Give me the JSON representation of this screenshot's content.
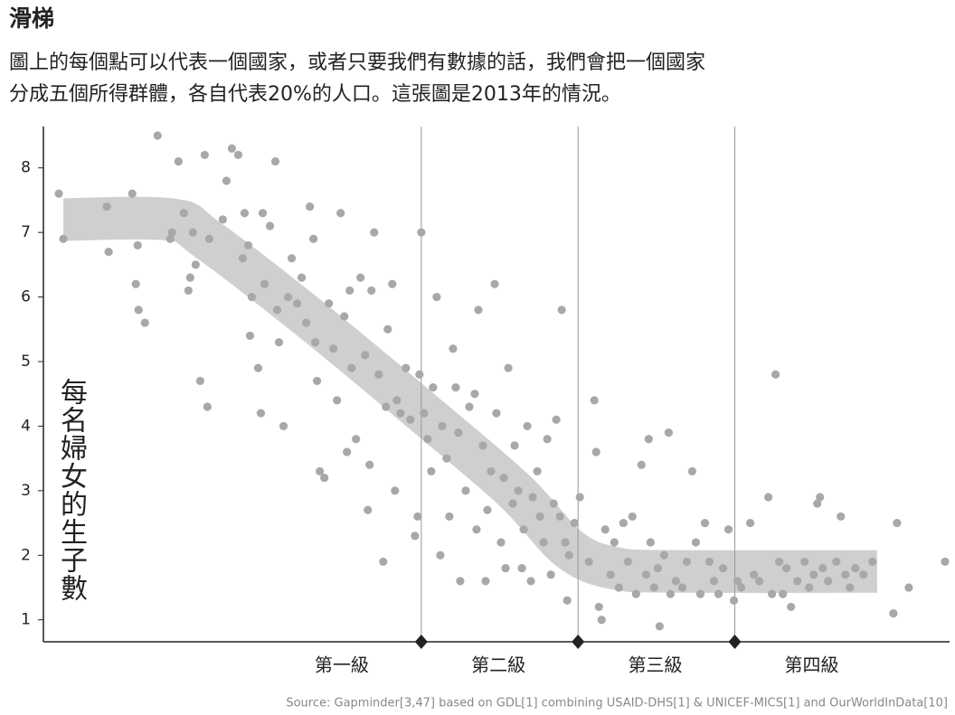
{
  "chart_data": {
    "type": "scatter",
    "title": "滑梯",
    "subtitle": [
      "圖上的每個點可以代表一個國家，或者只要我們有數據的話，我們會把一個國家",
      "分成五個所得群體，各自代表20%的人口。這張圖是2013年的情況。"
    ],
    "ylabel": "每名婦女的生子數",
    "source": "Source: Gapminder[3,47] based on GDL[1] combining USAID-DHS[1] & UNICEF-MICS[1] and OurWorldInData[10]",
    "xlim": [
      0,
      100
    ],
    "ylim": [
      0.66,
      8.64
    ],
    "yticks": [
      1,
      2,
      3,
      4,
      5,
      6,
      7,
      8
    ],
    "color": "#a8a8a8",
    "band_color": "#cfcfcf",
    "band_width": 0.66,
    "band": {
      "x": [
        2.2,
        14,
        18,
        30,
        42,
        52,
        58,
        63,
        70,
        92
      ],
      "y": [
        7.2,
        7.2,
        6.9,
        5.6,
        4.2,
        3.0,
        2.1,
        1.8,
        1.75,
        1.75
      ]
    },
    "levels": [
      "第一級",
      "第二級",
      "第三級",
      "第四級"
    ],
    "level_boundaries": [
      41.7,
      59.0,
      76.3
    ],
    "x": [
      1.7,
      2.2,
      7,
      7.2,
      9.8,
      10.2,
      10.4,
      10.5,
      11.2,
      12.6,
      14,
      14.2,
      14.9,
      15.5,
      16,
      16.2,
      16.5,
      16.8,
      17.3,
      17.8,
      18.1,
      18.3,
      19.8,
      20.2,
      20.8,
      21.5,
      22,
      22.2,
      22.6,
      22.8,
      23,
      23.7,
      24,
      24.2,
      24.4,
      25,
      25.6,
      25.8,
      26,
      26.5,
      27,
      27.4,
      28,
      28.5,
      29,
      29.4,
      29.8,
      30,
      30.2,
      30.5,
      31,
      31.5,
      32,
      32.4,
      32.8,
      33.2,
      33.5,
      33.8,
      34,
      34.5,
      35,
      35.5,
      35.8,
      36,
      36.2,
      36.5,
      37,
      37.5,
      37.8,
      38,
      38.5,
      38.8,
      39,
      39.4,
      40,
      40.5,
      41,
      41.3,
      41.5,
      41.7,
      42,
      42.4,
      42.8,
      43,
      43.4,
      43.8,
      44,
      44.5,
      44.8,
      45.2,
      45.5,
      45.8,
      46,
      46.6,
      47,
      47.6,
      47.8,
      48,
      48.5,
      48.8,
      49,
      49.4,
      49.8,
      50,
      50.5,
      50.8,
      51,
      51.3,
      51.8,
      52,
      52.4,
      52.8,
      53,
      53.4,
      53.8,
      54,
      54.5,
      54.8,
      55.2,
      55.6,
      56,
      56.3,
      56.6,
      57,
      57.2,
      57.6,
      57.8,
      58,
      58.6,
      59.2,
      60.2,
      60.8,
      61,
      61.3,
      61.6,
      62,
      62.6,
      63,
      63.5,
      64,
      64.5,
      65,
      65.4,
      66,
      66.5,
      66.8,
      67,
      67.4,
      67.8,
      68,
      68.5,
      69,
      69.2,
      69.8,
      70.5,
      71,
      71.6,
      72,
      72.5,
      73,
      73.5,
      74,
      74.5,
      75,
      75.6,
      76.2,
      76.6,
      77,
      78,
      78.4,
      79,
      80,
      80.4,
      80.8,
      81.2,
      81.6,
      82,
      82.5,
      83.2,
      84,
      84.5,
      85,
      85.4,
      85.7,
      86,
      86.6,
      87.5,
      88,
      88.5,
      89,
      89.6,
      90.5,
      91.5,
      93.8,
      94.2,
      95.5,
      99.5
    ],
    "values": [
      7.6,
      6.9,
      7.4,
      6.7,
      7.6,
      6.2,
      6.8,
      5.8,
      5.6,
      8.5,
      6.9,
      7.0,
      8.1,
      7.3,
      6.1,
      6.3,
      7.0,
      6.5,
      4.7,
      8.2,
      4.3,
      6.9,
      7.2,
      7.8,
      8.3,
      8.2,
      6.6,
      7.3,
      6.8,
      5.4,
      6.0,
      4.9,
      4.2,
      7.3,
      6.2,
      7.1,
      8.1,
      5.8,
      5.3,
      4.0,
      6.0,
      6.6,
      5.9,
      6.3,
      5.6,
      7.4,
      6.9,
      5.3,
      4.7,
      3.3,
      3.2,
      5.9,
      5.2,
      4.4,
      7.3,
      5.7,
      3.6,
      6.1,
      4.9,
      3.8,
      6.3,
      5.1,
      2.7,
      3.4,
      6.1,
      7.0,
      4.8,
      1.9,
      4.3,
      5.5,
      6.2,
      3.0,
      4.4,
      4.2,
      4.9,
      4.1,
      2.3,
      2.6,
      4.8,
      7.0,
      4.2,
      3.8,
      3.3,
      4.6,
      6.0,
      2.0,
      4.0,
      3.5,
      2.6,
      5.2,
      4.6,
      3.9,
      1.6,
      3.0,
      4.3,
      4.5,
      2.4,
      5.8,
      3.7,
      1.6,
      2.7,
      3.3,
      6.2,
      4.2,
      2.2,
      3.2,
      1.8,
      4.9,
      2.8,
      3.7,
      3.0,
      1.8,
      2.4,
      4.0,
      1.6,
      2.9,
      3.3,
      2.6,
      2.2,
      3.8,
      1.7,
      2.8,
      4.1,
      2.6,
      5.8,
      2.2,
      1.3,
      2.0,
      2.5,
      2.9,
      1.9,
      4.4,
      3.6,
      1.2,
      1.0,
      2.4,
      1.7,
      2.2,
      1.5,
      2.5,
      1.9,
      2.6,
      1.4,
      3.4,
      1.7,
      3.8,
      2.2,
      1.5,
      1.8,
      0.9,
      2.0,
      3.9,
      1.4,
      1.6,
      1.5,
      1.9,
      3.3,
      2.2,
      1.4,
      2.5,
      1.9,
      1.6,
      1.4,
      1.8,
      2.4,
      1.3,
      1.6,
      1.5,
      2.5,
      1.7,
      1.6,
      2.9,
      1.4,
      4.8,
      1.9,
      1.4,
      1.8,
      1.2,
      1.6,
      1.9,
      1.5,
      1.7,
      2.8,
      2.9,
      1.8,
      1.6,
      1.9,
      2.6,
      1.7,
      1.5,
      1.8,
      1.7,
      1.9,
      1.1,
      2.5,
      1.5,
      1.9
    ]
  }
}
